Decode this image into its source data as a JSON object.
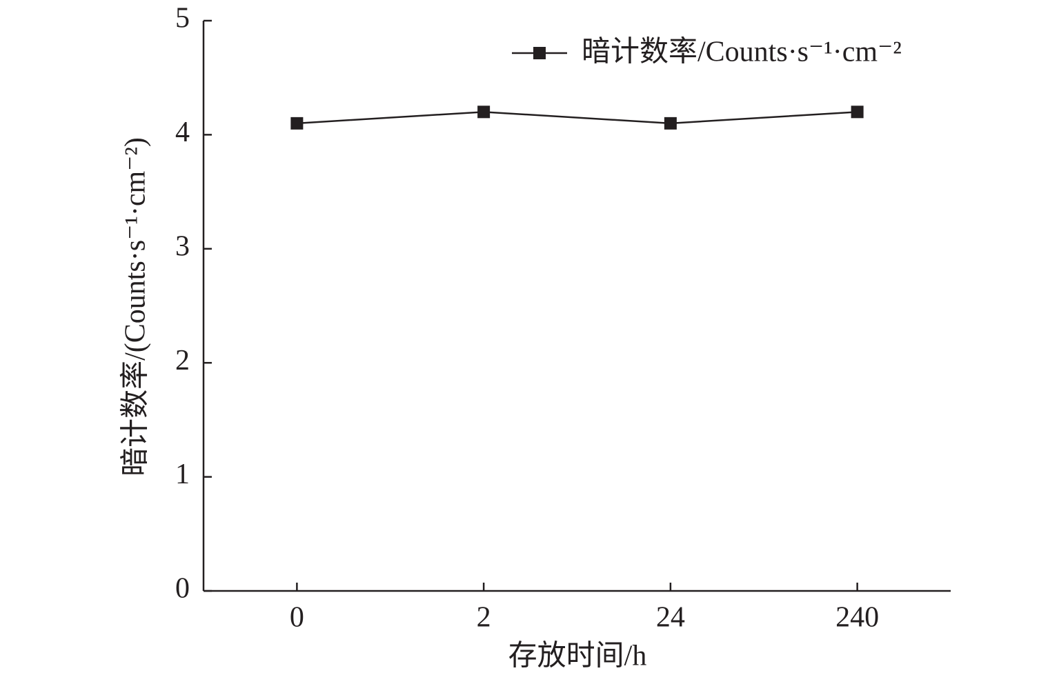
{
  "chart_data": {
    "type": "line",
    "x_label": "存放时间/h",
    "y_label": "暗计数率/(Counts·s⁻¹·cm⁻²)",
    "categories": [
      "0",
      "2",
      "24",
      "240"
    ],
    "series": [
      {
        "name": "暗计数率/Counts·s⁻¹·cm⁻²",
        "color": "#231f20",
        "values": [
          4.1,
          4.2,
          4.1,
          4.2
        ]
      }
    ],
    "ylim": [
      0,
      5
    ],
    "yticks": [
      0,
      1,
      2,
      3,
      4,
      5
    ],
    "grid": false,
    "legend": "upper right"
  }
}
